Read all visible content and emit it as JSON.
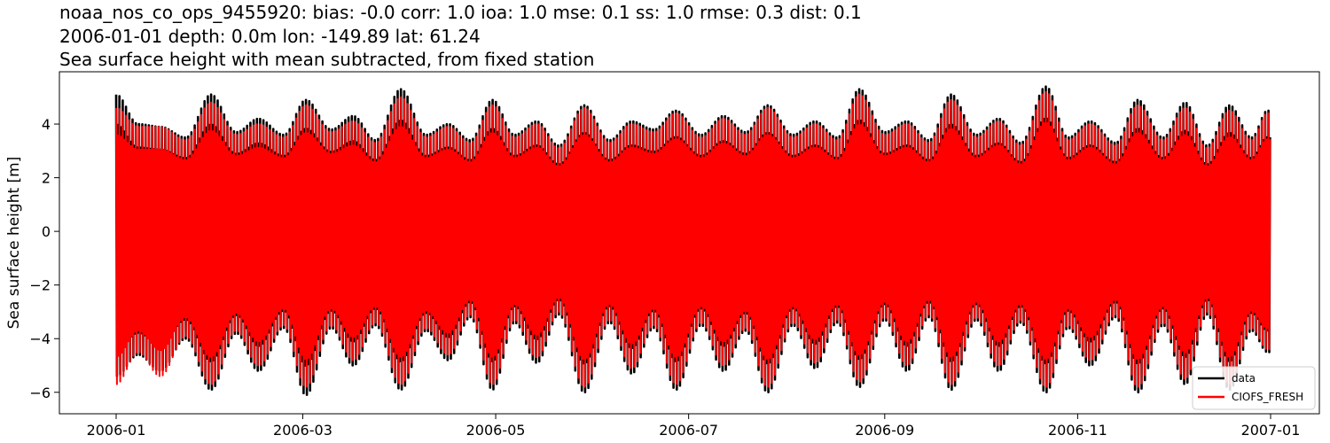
{
  "chart_data": {
    "type": "line",
    "title_lines": [
      "noaa_nos_co_ops_9455920: bias: -0.0  corr: 1.0  ioa: 1.0  mse: 0.1  ss: 1.0  rmse: 0.3  dist: 0.1",
      "2006-01-01 depth: 0.0m lon: -149.89 lat: 61.24",
      "Sea surface height with mean subtracted, from fixed station"
    ],
    "xlabel": "",
    "ylabel": "Sea surface height [m]",
    "x_range": [
      "2006-01-01",
      "2007-01-01"
    ],
    "x_ticks": [
      "2006-01",
      "2006-03",
      "2006-05",
      "2006-07",
      "2006-09",
      "2006-11",
      "2007-01"
    ],
    "ylim": [
      -6.8,
      5.95
    ],
    "y_ticks": [
      -6,
      -4,
      -2,
      0,
      2,
      4
    ],
    "grid": false,
    "legend_position": "lower right",
    "series": [
      {
        "name": "data",
        "color": "#000000",
        "daily_high_envelope": [
          {
            "x": "2006-01-01",
            "y": 5.1
          },
          {
            "x": "2006-01-08",
            "y": 4.0
          },
          {
            "x": "2006-01-15",
            "y": 3.9
          },
          {
            "x": "2006-01-23",
            "y": 3.5
          },
          {
            "x": "2006-01-31",
            "y": 5.1
          },
          {
            "x": "2006-02-08",
            "y": 3.7
          },
          {
            "x": "2006-02-15",
            "y": 4.2
          },
          {
            "x": "2006-02-23",
            "y": 3.6
          },
          {
            "x": "2006-03-02",
            "y": 4.9
          },
          {
            "x": "2006-03-10",
            "y": 3.8
          },
          {
            "x": "2006-03-17",
            "y": 4.3
          },
          {
            "x": "2006-03-24",
            "y": 3.4
          },
          {
            "x": "2006-04-01",
            "y": 5.3
          },
          {
            "x": "2006-04-09",
            "y": 3.6
          },
          {
            "x": "2006-04-16",
            "y": 4.0
          },
          {
            "x": "2006-04-23",
            "y": 3.4
          },
          {
            "x": "2006-04-30",
            "y": 4.9
          },
          {
            "x": "2006-05-07",
            "y": 3.6
          },
          {
            "x": "2006-05-14",
            "y": 4.1
          },
          {
            "x": "2006-05-21",
            "y": 3.2
          },
          {
            "x": "2006-05-29",
            "y": 4.7
          },
          {
            "x": "2006-06-06",
            "y": 3.4
          },
          {
            "x": "2006-06-13",
            "y": 4.1
          },
          {
            "x": "2006-06-20",
            "y": 3.8
          },
          {
            "x": "2006-06-27",
            "y": 4.5
          },
          {
            "x": "2006-07-05",
            "y": 3.6
          },
          {
            "x": "2006-07-12",
            "y": 4.3
          },
          {
            "x": "2006-07-19",
            "y": 3.7
          },
          {
            "x": "2006-07-26",
            "y": 4.7
          },
          {
            "x": "2006-08-03",
            "y": 3.6
          },
          {
            "x": "2006-08-10",
            "y": 4.1
          },
          {
            "x": "2006-08-17",
            "y": 3.5
          },
          {
            "x": "2006-08-24",
            "y": 5.3
          },
          {
            "x": "2006-09-01",
            "y": 3.7
          },
          {
            "x": "2006-09-08",
            "y": 4.1
          },
          {
            "x": "2006-09-15",
            "y": 3.4
          },
          {
            "x": "2006-09-22",
            "y": 5.1
          },
          {
            "x": "2006-09-30",
            "y": 3.6
          },
          {
            "x": "2006-10-07",
            "y": 4.2
          },
          {
            "x": "2006-10-14",
            "y": 3.3
          },
          {
            "x": "2006-10-22",
            "y": 5.4
          },
          {
            "x": "2006-10-29",
            "y": 3.5
          },
          {
            "x": "2006-11-05",
            "y": 4.1
          },
          {
            "x": "2006-11-13",
            "y": 3.3
          },
          {
            "x": "2006-11-20",
            "y": 4.9
          },
          {
            "x": "2006-11-28",
            "y": 3.5
          },
          {
            "x": "2006-12-05",
            "y": 4.8
          },
          {
            "x": "2006-12-12",
            "y": 3.2
          },
          {
            "x": "2006-12-19",
            "y": 4.7
          },
          {
            "x": "2006-12-26",
            "y": 3.5
          },
          {
            "x": "2006-12-31",
            "y": 4.5
          }
        ],
        "daily_low_envelope": [
          {
            "x": "2006-01-01",
            "y": -5.4
          },
          {
            "x": "2006-01-08",
            "y": -4.6
          },
          {
            "x": "2006-01-15",
            "y": -5.2
          },
          {
            "x": "2006-01-23",
            "y": -4.0
          },
          {
            "x": "2006-01-31",
            "y": -5.9
          },
          {
            "x": "2006-02-08",
            "y": -3.8
          },
          {
            "x": "2006-02-15",
            "y": -5.2
          },
          {
            "x": "2006-02-23",
            "y": -3.6
          },
          {
            "x": "2006-03-02",
            "y": -6.1
          },
          {
            "x": "2006-03-10",
            "y": -3.6
          },
          {
            "x": "2006-03-17",
            "y": -5.0
          },
          {
            "x": "2006-03-24",
            "y": -3.5
          },
          {
            "x": "2006-04-01",
            "y": -5.9
          },
          {
            "x": "2006-04-09",
            "y": -3.7
          },
          {
            "x": "2006-04-16",
            "y": -4.8
          },
          {
            "x": "2006-04-23",
            "y": -3.2
          },
          {
            "x": "2006-04-30",
            "y": -5.9
          },
          {
            "x": "2006-05-07",
            "y": -3.4
          },
          {
            "x": "2006-05-14",
            "y": -4.9
          },
          {
            "x": "2006-05-21",
            "y": -3.1
          },
          {
            "x": "2006-05-29",
            "y": -6.0
          },
          {
            "x": "2006-06-06",
            "y": -3.4
          },
          {
            "x": "2006-06-13",
            "y": -5.3
          },
          {
            "x": "2006-06-20",
            "y": -3.6
          },
          {
            "x": "2006-06-27",
            "y": -5.9
          },
          {
            "x": "2006-07-05",
            "y": -3.5
          },
          {
            "x": "2006-07-12",
            "y": -5.2
          },
          {
            "x": "2006-07-19",
            "y": -3.7
          },
          {
            "x": "2006-07-26",
            "y": -6.0
          },
          {
            "x": "2006-08-03",
            "y": -3.5
          },
          {
            "x": "2006-08-10",
            "y": -5.1
          },
          {
            "x": "2006-08-17",
            "y": -3.4
          },
          {
            "x": "2006-08-24",
            "y": -5.8
          },
          {
            "x": "2006-09-01",
            "y": -3.3
          },
          {
            "x": "2006-09-08",
            "y": -5.2
          },
          {
            "x": "2006-09-15",
            "y": -3.2
          },
          {
            "x": "2006-09-22",
            "y": -5.9
          },
          {
            "x": "2006-09-30",
            "y": -3.3
          },
          {
            "x": "2006-10-07",
            "y": -5.2
          },
          {
            "x": "2006-10-14",
            "y": -3.4
          },
          {
            "x": "2006-10-22",
            "y": -6.0
          },
          {
            "x": "2006-10-29",
            "y": -3.6
          },
          {
            "x": "2006-11-05",
            "y": -5.0
          },
          {
            "x": "2006-11-13",
            "y": -3.2
          },
          {
            "x": "2006-11-20",
            "y": -6.0
          },
          {
            "x": "2006-11-28",
            "y": -3.5
          },
          {
            "x": "2006-12-05",
            "y": -5.7
          },
          {
            "x": "2006-12-12",
            "y": -3.1
          },
          {
            "x": "2006-12-19",
            "y": -5.9
          },
          {
            "x": "2006-12-26",
            "y": -3.7
          },
          {
            "x": "2006-12-31",
            "y": -4.5
          }
        ]
      },
      {
        "name": "CIOFS_FRESH",
        "color": "#ff0000",
        "daily_high_envelope": [
          {
            "x": "2006-01-01",
            "y": 4.6
          },
          {
            "x": "2006-01-08",
            "y": 3.9
          },
          {
            "x": "2006-01-15",
            "y": 3.9
          },
          {
            "x": "2006-01-23",
            "y": 3.4
          },
          {
            "x": "2006-01-31",
            "y": 4.8
          },
          {
            "x": "2006-02-08",
            "y": 3.6
          },
          {
            "x": "2006-02-15",
            "y": 4.0
          },
          {
            "x": "2006-02-23",
            "y": 3.5
          },
          {
            "x": "2006-03-02",
            "y": 4.7
          },
          {
            "x": "2006-03-10",
            "y": 3.7
          },
          {
            "x": "2006-03-17",
            "y": 4.1
          },
          {
            "x": "2006-03-24",
            "y": 3.3
          },
          {
            "x": "2006-04-01",
            "y": 5.0
          },
          {
            "x": "2006-04-09",
            "y": 3.5
          },
          {
            "x": "2006-04-16",
            "y": 3.9
          },
          {
            "x": "2006-04-23",
            "y": 3.3
          },
          {
            "x": "2006-04-30",
            "y": 4.7
          },
          {
            "x": "2006-05-07",
            "y": 3.5
          },
          {
            "x": "2006-05-14",
            "y": 4.0
          },
          {
            "x": "2006-05-21",
            "y": 3.1
          },
          {
            "x": "2006-05-29",
            "y": 4.6
          },
          {
            "x": "2006-06-06",
            "y": 3.3
          },
          {
            "x": "2006-06-13",
            "y": 4.0
          },
          {
            "x": "2006-06-20",
            "y": 3.7
          },
          {
            "x": "2006-06-27",
            "y": 4.4
          },
          {
            "x": "2006-07-05",
            "y": 3.5
          },
          {
            "x": "2006-07-12",
            "y": 4.2
          },
          {
            "x": "2006-07-19",
            "y": 3.6
          },
          {
            "x": "2006-07-26",
            "y": 4.6
          },
          {
            "x": "2006-08-03",
            "y": 3.5
          },
          {
            "x": "2006-08-10",
            "y": 4.0
          },
          {
            "x": "2006-08-17",
            "y": 3.4
          },
          {
            "x": "2006-08-24",
            "y": 5.1
          },
          {
            "x": "2006-09-01",
            "y": 3.6
          },
          {
            "x": "2006-09-08",
            "y": 4.0
          },
          {
            "x": "2006-09-15",
            "y": 3.3
          },
          {
            "x": "2006-09-22",
            "y": 4.9
          },
          {
            "x": "2006-09-30",
            "y": 3.5
          },
          {
            "x": "2006-10-07",
            "y": 4.1
          },
          {
            "x": "2006-10-14",
            "y": 3.2
          },
          {
            "x": "2006-10-22",
            "y": 5.2
          },
          {
            "x": "2006-10-29",
            "y": 3.4
          },
          {
            "x": "2006-11-05",
            "y": 4.0
          },
          {
            "x": "2006-11-13",
            "y": 3.2
          },
          {
            "x": "2006-11-20",
            "y": 4.7
          },
          {
            "x": "2006-11-28",
            "y": 3.4
          },
          {
            "x": "2006-12-05",
            "y": 4.6
          },
          {
            "x": "2006-12-12",
            "y": 3.1
          },
          {
            "x": "2006-12-19",
            "y": 4.5
          },
          {
            "x": "2006-12-26",
            "y": 3.4
          },
          {
            "x": "2006-12-31",
            "y": 4.4
          }
        ],
        "daily_low_envelope": [
          {
            "x": "2006-01-01",
            "y": -5.7
          },
          {
            "x": "2006-01-08",
            "y": -4.5
          },
          {
            "x": "2006-01-15",
            "y": -5.4
          },
          {
            "x": "2006-01-23",
            "y": -3.9
          },
          {
            "x": "2006-01-31",
            "y": -5.7
          },
          {
            "x": "2006-02-08",
            "y": -3.7
          },
          {
            "x": "2006-02-15",
            "y": -5.0
          },
          {
            "x": "2006-02-23",
            "y": -3.5
          },
          {
            "x": "2006-03-02",
            "y": -5.8
          },
          {
            "x": "2006-03-10",
            "y": -3.5
          },
          {
            "x": "2006-03-17",
            "y": -4.8
          },
          {
            "x": "2006-03-24",
            "y": -3.4
          },
          {
            "x": "2006-04-01",
            "y": -5.7
          },
          {
            "x": "2006-04-09",
            "y": -3.6
          },
          {
            "x": "2006-04-16",
            "y": -4.6
          },
          {
            "x": "2006-04-23",
            "y": -3.1
          },
          {
            "x": "2006-04-30",
            "y": -5.7
          },
          {
            "x": "2006-05-07",
            "y": -3.3
          },
          {
            "x": "2006-05-14",
            "y": -4.7
          },
          {
            "x": "2006-05-21",
            "y": -3.0
          },
          {
            "x": "2006-05-29",
            "y": -5.8
          },
          {
            "x": "2006-06-06",
            "y": -3.3
          },
          {
            "x": "2006-06-13",
            "y": -5.1
          },
          {
            "x": "2006-06-20",
            "y": -3.5
          },
          {
            "x": "2006-06-27",
            "y": -5.7
          },
          {
            "x": "2006-07-05",
            "y": -3.4
          },
          {
            "x": "2006-07-12",
            "y": -5.0
          },
          {
            "x": "2006-07-19",
            "y": -3.6
          },
          {
            "x": "2006-07-26",
            "y": -5.8
          },
          {
            "x": "2006-08-03",
            "y": -3.4
          },
          {
            "x": "2006-08-10",
            "y": -4.9
          },
          {
            "x": "2006-08-17",
            "y": -3.3
          },
          {
            "x": "2006-08-24",
            "y": -5.6
          },
          {
            "x": "2006-09-01",
            "y": -3.2
          },
          {
            "x": "2006-09-08",
            "y": -5.0
          },
          {
            "x": "2006-09-15",
            "y": -3.1
          },
          {
            "x": "2006-09-22",
            "y": -5.7
          },
          {
            "x": "2006-09-30",
            "y": -3.2
          },
          {
            "x": "2006-10-07",
            "y": -5.0
          },
          {
            "x": "2006-10-14",
            "y": -3.3
          },
          {
            "x": "2006-10-22",
            "y": -5.8
          },
          {
            "x": "2006-10-29",
            "y": -3.5
          },
          {
            "x": "2006-11-05",
            "y": -4.8
          },
          {
            "x": "2006-11-13",
            "y": -3.1
          },
          {
            "x": "2006-11-20",
            "y": -5.8
          },
          {
            "x": "2006-11-28",
            "y": -3.4
          },
          {
            "x": "2006-12-05",
            "y": -5.5
          },
          {
            "x": "2006-12-12",
            "y": -3.0
          },
          {
            "x": "2006-12-19",
            "y": -5.7
          },
          {
            "x": "2006-12-26",
            "y": -3.6
          },
          {
            "x": "2006-12-31",
            "y": -4.4
          }
        ]
      }
    ]
  }
}
